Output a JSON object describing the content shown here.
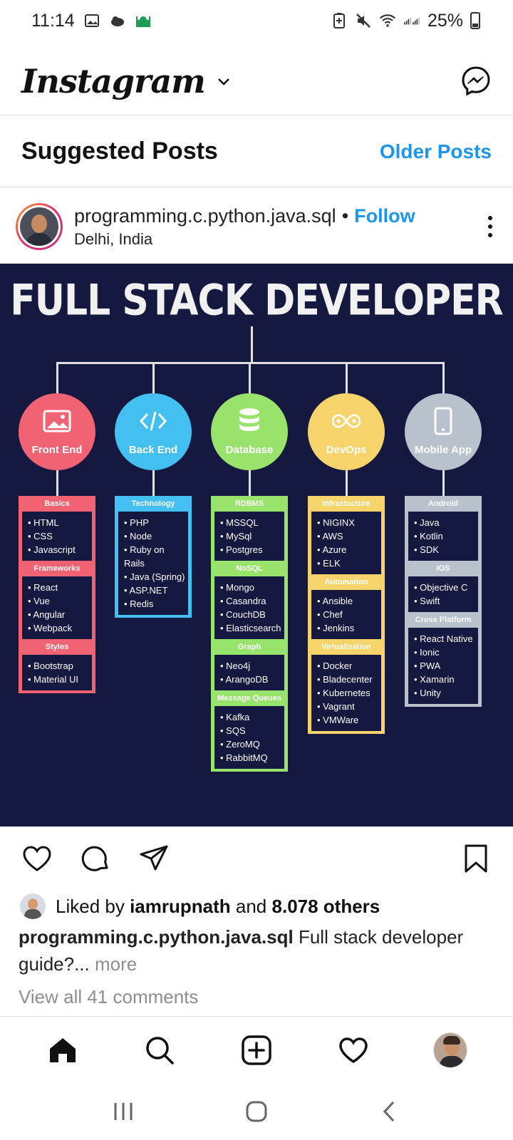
{
  "status_bar": {
    "time": "11:14",
    "battery": "25%"
  },
  "header": {
    "logo": "Instagram"
  },
  "suggested": {
    "title": "Suggested Posts",
    "older_posts": "Older Posts"
  },
  "post": {
    "username": "programming.c.python.java.sql",
    "separator": "•",
    "follow": "Follow",
    "location": "Delhi, India"
  },
  "infographic": {
    "title": "FULL STACK DEVELOPER",
    "columns": [
      {
        "label": "Front End",
        "color": "#f16272",
        "groups": [
          {
            "title": "Basics",
            "items": [
              "HTML",
              "CSS",
              "Javascript"
            ]
          },
          {
            "title": "Frameworks",
            "items": [
              "React",
              "Vue",
              "Angular",
              "Webpack"
            ]
          },
          {
            "title": "Styles",
            "items": [
              "Bootstrap",
              "Material UI"
            ]
          }
        ]
      },
      {
        "label": "Back End",
        "color": "#43bff1",
        "groups": [
          {
            "title": "Technology",
            "items": [
              "PHP",
              "Node",
              "Ruby on Rails",
              "Java (Spring)",
              "ASP.NET",
              "Redis"
            ]
          }
        ]
      },
      {
        "label": "Database",
        "color": "#98e36b",
        "groups": [
          {
            "title": "RDBMS",
            "items": [
              "MSSQL",
              "MySql",
              "Postgres"
            ]
          },
          {
            "title": "NoSQL",
            "items": [
              "Mongo",
              "Casandra",
              "CouchDB",
              "Elasticsearch"
            ]
          },
          {
            "title": "Graph",
            "items": [
              "Neo4j",
              "ArangoDB"
            ]
          },
          {
            "title": "Message Queues",
            "items": [
              "Kafka",
              "SQS",
              "ZeroMQ",
              "RabbitMQ"
            ]
          }
        ]
      },
      {
        "label": "DevOps",
        "color": "#f7d36b",
        "groups": [
          {
            "title": "Infrastucture",
            "items": [
              "NIGINX",
              "AWS",
              "Azure",
              "ELK"
            ]
          },
          {
            "title": "Automation",
            "items": [
              "Ansible",
              "Chef",
              "Jenkins"
            ]
          },
          {
            "title": "Virtualisation",
            "items": [
              "Docker",
              "Bladecenter",
              "Kubernetes",
              "Vagrant",
              "VMWare"
            ]
          }
        ]
      },
      {
        "label": "Mobile App",
        "color": "#b8c2cc",
        "groups": [
          {
            "title": "Android",
            "items": [
              "Java",
              "Kotlin",
              "SDK"
            ]
          },
          {
            "title": "IOS",
            "items": [
              "Objective C",
              "Swift"
            ]
          },
          {
            "title": "Cross Platform",
            "items": [
              "React Native",
              "Ionic",
              "PWA",
              "Xamarin",
              "Unity"
            ]
          }
        ]
      }
    ]
  },
  "likes": {
    "prefix": "Liked by",
    "user": "iamrupnath",
    "middle": "and",
    "others": "8.078 others"
  },
  "caption": {
    "username": "programming.c.python.java.sql",
    "text": "Full stack developer guide?...",
    "more": "more"
  },
  "comments": {
    "view_all": "View all 41 comments"
  },
  "icons": {
    "status": [
      "gallery-icon",
      "weather-icon",
      "mosque-icon",
      "battery-saver-icon",
      "mute-icon",
      "wifi-icon",
      "signal-icon"
    ],
    "header": [
      "chevron-down-icon",
      "messenger-icon"
    ],
    "actions": [
      "heart-icon",
      "comment-icon",
      "share-icon",
      "bookmark-icon"
    ],
    "nav": [
      "home-icon",
      "search-icon",
      "add-post-icon",
      "activity-heart-icon",
      "profile-avatar"
    ],
    "system": [
      "recents-icon",
      "home-button-icon",
      "back-icon"
    ]
  }
}
